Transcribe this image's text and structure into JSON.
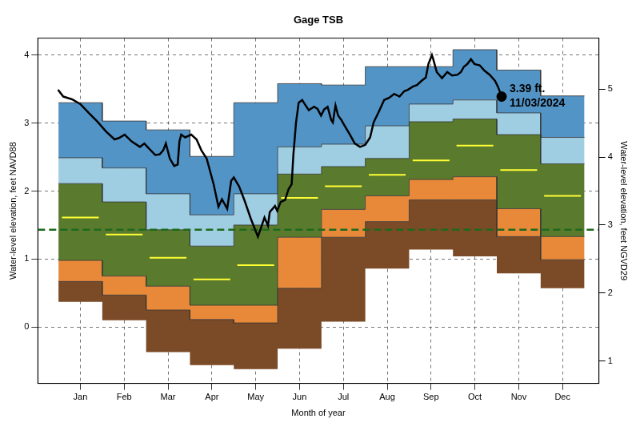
{
  "chart_data": {
    "type": "line",
    "title": "Gage TSB",
    "x_label": "Month of year",
    "y_label": "Water-level elevation, feet NAVD88",
    "y2_label": "Water-level elevation, feet NGVD29",
    "categories": [
      "Jan",
      "Feb",
      "Mar",
      "Apr",
      "May",
      "Jun",
      "Jul",
      "Aug",
      "Sep",
      "Oct",
      "Nov",
      "Dec"
    ],
    "xlim": [
      -0.97,
      11.83
    ],
    "ylim": [
      -0.83,
      4.25
    ],
    "yticks": [
      0,
      1,
      2,
      3,
      4
    ],
    "y2lim": [
      0.67,
      5.75
    ],
    "y2ticks": [
      1,
      2,
      3,
      4,
      5
    ],
    "grid": true,
    "series": [
      {
        "type": "band",
        "color": "#7b4a26",
        "low": [
          0.37,
          0.1,
          -0.37,
          -0.56,
          -0.62,
          -0.32,
          0.08,
          0.86,
          1.14,
          1.04,
          0.79,
          0.57
        ],
        "high": [
          0.67,
          0.47,
          0.25,
          0.11,
          0.06,
          0.57,
          1.32,
          1.55,
          1.87,
          1.87,
          1.33,
          0.99
        ]
      },
      {
        "type": "band",
        "color": "#e8893a",
        "low": [
          0.67,
          0.47,
          0.25,
          0.11,
          0.06,
          0.57,
          1.32,
          1.55,
          1.87,
          1.87,
          1.33,
          0.99
        ],
        "high": [
          0.98,
          0.75,
          0.6,
          0.32,
          0.32,
          1.32,
          1.73,
          1.93,
          2.17,
          2.21,
          1.74,
          1.33
        ]
      },
      {
        "type": "band",
        "color": "#5a7a2e",
        "low": [
          0.98,
          0.75,
          0.6,
          0.32,
          0.32,
          1.32,
          1.73,
          1.93,
          2.17,
          2.21,
          1.74,
          1.33
        ],
        "high": [
          2.11,
          1.84,
          1.43,
          1.19,
          1.5,
          2.25,
          2.36,
          2.48,
          3.02,
          3.06,
          2.83,
          2.4
        ]
      },
      {
        "type": "band",
        "color": "#9fcde2",
        "low": [
          2.11,
          1.84,
          1.43,
          1.19,
          1.5,
          2.25,
          2.36,
          2.48,
          3.02,
          3.06,
          2.83,
          2.4
        ],
        "high": [
          2.49,
          2.34,
          1.96,
          1.65,
          1.96,
          2.65,
          2.69,
          2.96,
          3.28,
          3.34,
          3.15,
          2.79
        ]
      },
      {
        "type": "band",
        "color": "#5394c6",
        "low": [
          2.49,
          2.34,
          1.96,
          1.65,
          1.96,
          2.65,
          2.69,
          2.96,
          3.28,
          3.34,
          3.15,
          2.79
        ],
        "high": [
          3.3,
          3.03,
          2.9,
          2.51,
          3.3,
          3.58,
          3.56,
          3.83,
          3.83,
          4.08,
          3.78,
          3.4
        ]
      },
      {
        "type": "step",
        "color": "#ffff33",
        "values": [
          1.61,
          1.36,
          1.02,
          0.7,
          0.91,
          1.9,
          2.07,
          2.24,
          2.45,
          2.67,
          2.31,
          1.93
        ]
      },
      {
        "type": "line",
        "color": "#000000",
        "x": [
          -0.51,
          -0.39,
          -0.29,
          -0.19,
          0,
          0.19,
          0.39,
          0.58,
          0.78,
          0.88,
          1.01,
          1.17,
          1.36,
          1.46,
          1.56,
          1.71,
          1.81,
          1.89,
          1.95,
          2.04,
          2.14,
          2.22,
          2.26,
          2.3,
          2.39,
          2.53,
          2.65,
          2.76,
          2.88,
          3.04,
          3.15,
          3.23,
          3.35,
          3.44,
          3.5,
          3.62,
          3.74,
          3.89,
          4.05,
          4.12,
          4.2,
          4.28,
          4.32,
          4.44,
          4.49,
          4.57,
          4.67,
          4.75,
          4.82,
          4.86,
          4.92,
          4.98,
          5.06,
          5.14,
          5.21,
          5.33,
          5.41,
          5.49,
          5.56,
          5.64,
          5.72,
          5.76,
          5.82,
          5.88,
          5.95,
          6.03,
          6.15,
          6.26,
          6.38,
          6.5,
          6.61,
          6.69,
          6.81,
          6.93,
          7.04,
          7.16,
          7.28,
          7.39,
          7.47,
          7.59,
          7.68,
          7.78,
          7.88,
          7.94,
          8.02,
          8.05,
          8.13,
          8.25,
          8.37,
          8.48,
          8.6,
          8.68,
          8.75,
          8.83,
          8.91,
          8.99,
          9.11,
          9.22,
          9.34,
          9.46,
          9.53,
          9.61
        ],
        "values": [
          3.49,
          3.39,
          3.37,
          3.35,
          3.28,
          3.15,
          3.02,
          2.88,
          2.76,
          2.78,
          2.83,
          2.73,
          2.65,
          2.7,
          2.63,
          2.53,
          2.54,
          2.6,
          2.7,
          2.48,
          2.37,
          2.39,
          2.73,
          2.83,
          2.79,
          2.83,
          2.76,
          2.6,
          2.48,
          2.1,
          1.77,
          1.88,
          1.74,
          2.15,
          2.2,
          2.07,
          1.87,
          1.59,
          1.33,
          1.46,
          1.61,
          1.49,
          1.69,
          1.78,
          1.71,
          1.84,
          1.87,
          2.03,
          2.1,
          2.54,
          3.01,
          3.3,
          3.34,
          3.26,
          3.19,
          3.24,
          3.21,
          3.11,
          3.2,
          3.24,
          3.05,
          3.01,
          3.26,
          3.11,
          3.05,
          2.96,
          2.83,
          2.7,
          2.65,
          2.68,
          2.79,
          3.01,
          3.17,
          3.34,
          3.37,
          3.43,
          3.39,
          3.47,
          3.49,
          3.54,
          3.56,
          3.62,
          3.67,
          3.87,
          4.0,
          3.94,
          3.75,
          3.66,
          3.75,
          3.7,
          3.71,
          3.75,
          3.83,
          3.87,
          3.94,
          3.87,
          3.85,
          3.77,
          3.71,
          3.62,
          3.53,
          3.39
        ]
      }
    ],
    "hlines": [
      {
        "y": 1.43,
        "color": "#1d6a1d",
        "line_style": "dashed"
      }
    ],
    "annotations": [
      {
        "x": 9.61,
        "y": 3.39,
        "marker": "circle",
        "color": "#000000",
        "text": [
          "3.39 ft.",
          "11/03/2024"
        ]
      }
    ]
  }
}
